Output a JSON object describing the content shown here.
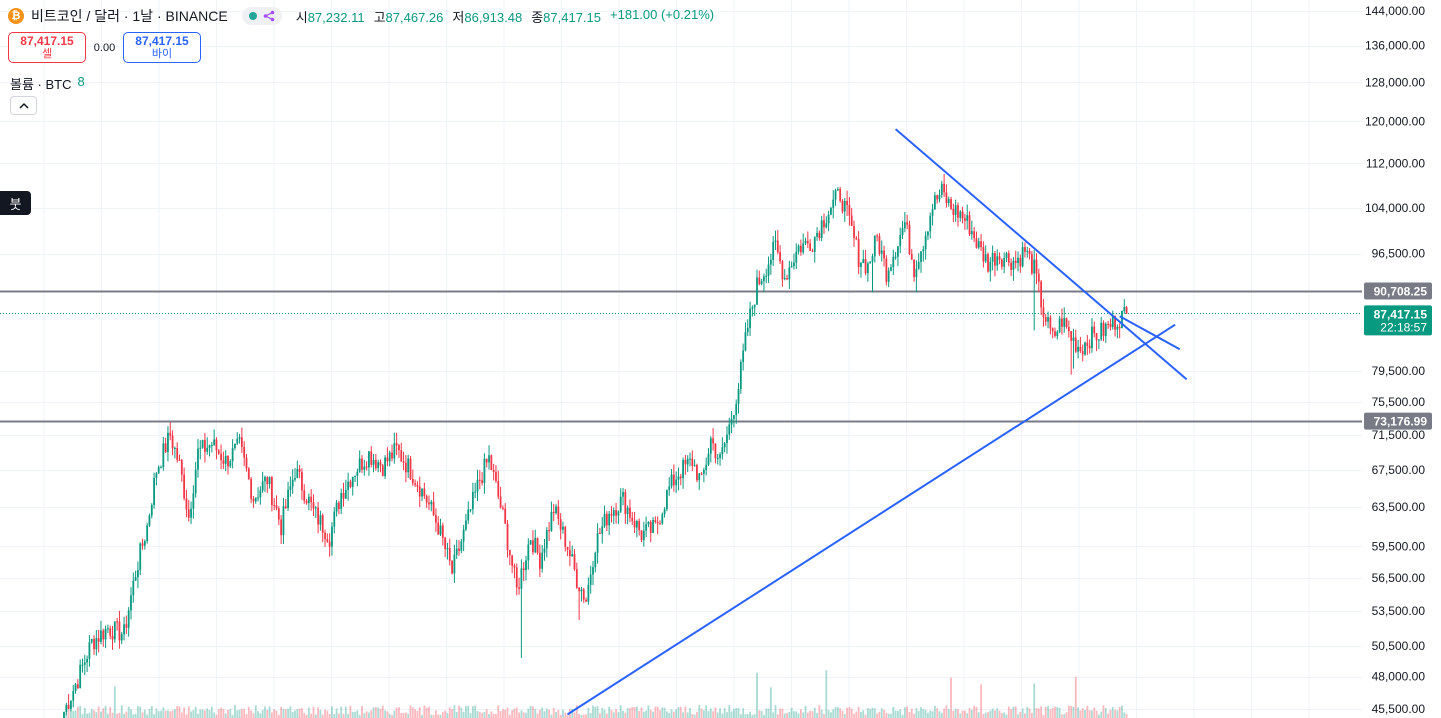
{
  "header": {
    "coin_icon": "bitcoin-icon",
    "symbol_title": "비트코인 / 달러 · 1날 · BINANCE",
    "ohlc": [
      {
        "label": "시",
        "value": "87,232.11"
      },
      {
        "label": "고",
        "value": "87,467.26"
      },
      {
        "label": "저",
        "value": "86,913.48"
      },
      {
        "label": "종",
        "value": "87,417.15"
      }
    ],
    "change": "+181.00 (+0.21%)"
  },
  "trade": {
    "sell_price": "87,417.15",
    "sell_label": "셀",
    "spread": "0.00",
    "buy_price": "87,417.15",
    "buy_label": "바이"
  },
  "volume_legend": {
    "label": "볼륨 · BTC",
    "value": "8"
  },
  "side_tag": "붓",
  "colors": {
    "up": "#089981",
    "down": "#f23645",
    "trendline": "#2962ff",
    "level_line": "#787b86",
    "grid": "#f0f3fa"
  },
  "chart_data": {
    "type": "candlestick",
    "symbol": "BTCUSD",
    "interval": "1D",
    "y_axis": {
      "scale": "log",
      "ticks": [
        "144,000.00",
        "136,000.00",
        "128,000.00",
        "120,000.00",
        "112,000.00",
        "104,000.00",
        "96,500.00",
        "90,708.25",
        "87,417.15",
        "79,500.00",
        "75,500.00",
        "73,176.99",
        "71,500.00",
        "67,500.00",
        "63,500.00",
        "59,500.00",
        "56,500.00",
        "53,500.00",
        "50,500.00",
        "48,000.00",
        "45,500.00"
      ],
      "ylim": [
        45200,
        146000
      ]
    },
    "price_labels": [
      {
        "value": "90,708.25"
      },
      {
        "value": "87,417.15",
        "countdown": "22:18:57"
      },
      {
        "value": "73,176.99"
      }
    ],
    "horizontal_levels": [
      90708.25,
      73176.99
    ],
    "last_price": 87417.15,
    "anchors": [
      [
        0,
        45300
      ],
      [
        6,
        47800
      ],
      [
        12,
        50800
      ],
      [
        19,
        52000
      ],
      [
        26,
        51500
      ],
      [
        31,
        57000
      ],
      [
        36,
        61500
      ],
      [
        40,
        67500
      ],
      [
        46,
        71500
      ],
      [
        50,
        68000
      ],
      [
        54,
        62500
      ],
      [
        58,
        69500
      ],
      [
        64,
        70500
      ],
      [
        70,
        68500
      ],
      [
        76,
        70200
      ],
      [
        82,
        64500
      ],
      [
        88,
        66500
      ],
      [
        94,
        61500
      ],
      [
        100,
        67500
      ],
      [
        108,
        63000
      ],
      [
        115,
        60500
      ],
      [
        120,
        65000
      ],
      [
        126,
        67500
      ],
      [
        132,
        69300
      ],
      [
        138,
        68000
      ],
      [
        144,
        69800
      ],
      [
        150,
        67500
      ],
      [
        156,
        64800
      ],
      [
        162,
        61500
      ],
      [
        168,
        57000
      ],
      [
        174,
        61500
      ],
      [
        180,
        66500
      ],
      [
        184,
        68800
      ],
      [
        190,
        62500
      ],
      [
        196,
        55300
      ],
      [
        202,
        60500
      ],
      [
        206,
        58300
      ],
      [
        212,
        63300
      ],
      [
        218,
        59500
      ],
      [
        222,
        56400
      ],
      [
        226,
        54500
      ],
      [
        230,
        59800
      ],
      [
        236,
        63000
      ],
      [
        242,
        64300
      ],
      [
        246,
        62400
      ],
      [
        250,
        60700
      ],
      [
        256,
        61300
      ],
      [
        262,
        65500
      ],
      [
        266,
        67200
      ],
      [
        272,
        68500
      ],
      [
        276,
        66000
      ],
      [
        280,
        71000
      ],
      [
        284,
        68500
      ],
      [
        288,
        72500
      ],
      [
        292,
        77500
      ],
      [
        296,
        85500
      ],
      [
        300,
        91500
      ],
      [
        304,
        94500
      ],
      [
        308,
        97500
      ],
      [
        312,
        92800
      ],
      [
        318,
        97500
      ],
      [
        324,
        98500
      ],
      [
        328,
        101500
      ],
      [
        332,
        104300
      ],
      [
        336,
        106500
      ],
      [
        340,
        101500
      ],
      [
        344,
        96000
      ],
      [
        348,
        94500
      ],
      [
        352,
        99000
      ],
      [
        356,
        93700
      ],
      [
        360,
        97500
      ],
      [
        364,
        101500
      ],
      [
        368,
        94200
      ],
      [
        372,
        98500
      ],
      [
        376,
        104500
      ],
      [
        380,
        106800
      ],
      [
        384,
        104000
      ],
      [
        388,
        103000
      ],
      [
        392,
        101000
      ],
      [
        396,
        97500
      ],
      [
        400,
        95000
      ],
      [
        404,
        96400
      ],
      [
        408,
        95800
      ],
      [
        412,
        95200
      ],
      [
        416,
        97000
      ],
      [
        420,
        94000
      ],
      [
        424,
        87500
      ],
      [
        428,
        83800
      ],
      [
        432,
        86500
      ],
      [
        436,
        84000
      ],
      [
        440,
        82500
      ],
      [
        444,
        84000
      ],
      [
        448,
        84500
      ],
      [
        452,
        85500
      ],
      [
        456,
        86600
      ],
      [
        460,
        87417.15
      ]
    ],
    "volume": {
      "label": "볼륨 · BTC",
      "last": 8
    },
    "trendlines": [
      {
        "from": {
          "t": 218,
          "price": 45100
        },
        "to": {
          "t": 481,
          "price": 85800
        }
      },
      {
        "from": {
          "t": 457,
          "price": 87000
        },
        "to": {
          "t": 483,
          "price": 82400
        }
      },
      {
        "from": {
          "t": 360,
          "price": 118500
        },
        "to": {
          "t": 486,
          "price": 78400
        }
      }
    ]
  }
}
